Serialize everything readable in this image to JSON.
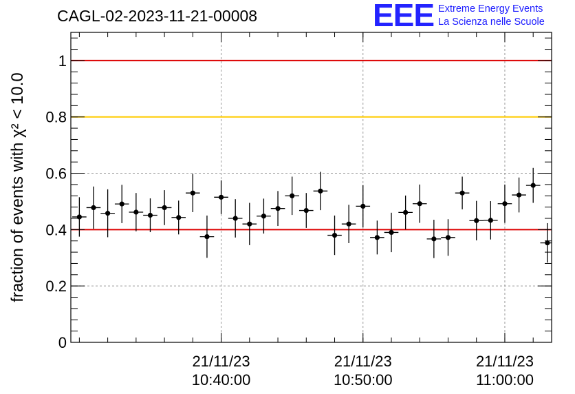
{
  "header": {
    "title": "CAGL-02-2023-11-21-00008",
    "logo": {
      "mark": "EEE",
      "line1": "Extreme Energy Events",
      "line2": "La Scienza nelle Scuole",
      "color": "#2323ff"
    }
  },
  "chart_data": {
    "type": "scatter",
    "title": "CAGL-02-2023-11-21-00008",
    "ylabel": "fraction of events with χ² < 10.0",
    "xlabel": "",
    "x_unit": "minutes after 10:30:00 on 21/11/23",
    "xlim": [
      29.4,
      63.3
    ],
    "ylim": [
      0,
      1.1
    ],
    "grid": true,
    "x_ticks": [
      {
        "x": 40,
        "label": [
          "21/11/23",
          "10:40:00"
        ]
      },
      {
        "x": 50,
        "label": [
          "21/11/23",
          "10:50:00"
        ]
      },
      {
        "x": 60,
        "label": [
          "21/11/23",
          "11:00:00"
        ]
      }
    ],
    "y_ticks": [
      {
        "y": 0,
        "label": "0"
      },
      {
        "y": 0.2,
        "label": "0.2"
      },
      {
        "y": 0.4,
        "label": "0.4"
      },
      {
        "y": 0.6,
        "label": "0.6"
      },
      {
        "y": 0.8,
        "label": "0.8"
      },
      {
        "y": 1.0,
        "label": "1"
      }
    ],
    "reference_lines": [
      {
        "y": 1.0,
        "color": "#dd0000"
      },
      {
        "y": 0.8,
        "color": "#ffcc00"
      },
      {
        "y": 0.4,
        "color": "#dd0000"
      }
    ],
    "series": [
      {
        "color": "#000000",
        "x_halfwidth": 0.5,
        "points": [
          {
            "x": 30,
            "y": 0.445,
            "err": 0.07
          },
          {
            "x": 31,
            "y": 0.478,
            "err": 0.075
          },
          {
            "x": 32,
            "y": 0.458,
            "err": 0.085
          },
          {
            "x": 33,
            "y": 0.491,
            "err": 0.068
          },
          {
            "x": 34,
            "y": 0.462,
            "err": 0.068
          },
          {
            "x": 35,
            "y": 0.451,
            "err": 0.06
          },
          {
            "x": 36,
            "y": 0.478,
            "err": 0.062
          },
          {
            "x": 37,
            "y": 0.443,
            "err": 0.06
          },
          {
            "x": 38,
            "y": 0.53,
            "err": 0.068
          },
          {
            "x": 39,
            "y": 0.375,
            "err": 0.075
          },
          {
            "x": 40,
            "y": 0.515,
            "err": 0.06
          },
          {
            "x": 41,
            "y": 0.44,
            "err": 0.068
          },
          {
            "x": 42,
            "y": 0.42,
            "err": 0.075
          },
          {
            "x": 43,
            "y": 0.448,
            "err": 0.062
          },
          {
            "x": 44,
            "y": 0.475,
            "err": 0.062
          },
          {
            "x": 45,
            "y": 0.52,
            "err": 0.068
          },
          {
            "x": 46,
            "y": 0.468,
            "err": 0.062
          },
          {
            "x": 47,
            "y": 0.537,
            "err": 0.068
          },
          {
            "x": 48,
            "y": 0.38,
            "err": 0.07
          },
          {
            "x": 49,
            "y": 0.42,
            "err": 0.068
          },
          {
            "x": 50,
            "y": 0.483,
            "err": 0.075
          },
          {
            "x": 51,
            "y": 0.372,
            "err": 0.06
          },
          {
            "x": 52,
            "y": 0.39,
            "err": 0.07
          },
          {
            "x": 53,
            "y": 0.461,
            "err": 0.06
          },
          {
            "x": 54,
            "y": 0.492,
            "err": 0.068
          },
          {
            "x": 55,
            "y": 0.367,
            "err": 0.068
          },
          {
            "x": 56,
            "y": 0.372,
            "err": 0.065
          },
          {
            "x": 57,
            "y": 0.53,
            "err": 0.058
          },
          {
            "x": 58,
            "y": 0.432,
            "err": 0.07
          },
          {
            "x": 59,
            "y": 0.433,
            "err": 0.068
          },
          {
            "x": 60,
            "y": 0.492,
            "err": 0.068
          },
          {
            "x": 61,
            "y": 0.523,
            "err": 0.062
          },
          {
            "x": 62,
            "y": 0.557,
            "err": 0.062
          },
          {
            "x": 63,
            "y": 0.353,
            "err": 0.07
          }
        ]
      }
    ]
  }
}
